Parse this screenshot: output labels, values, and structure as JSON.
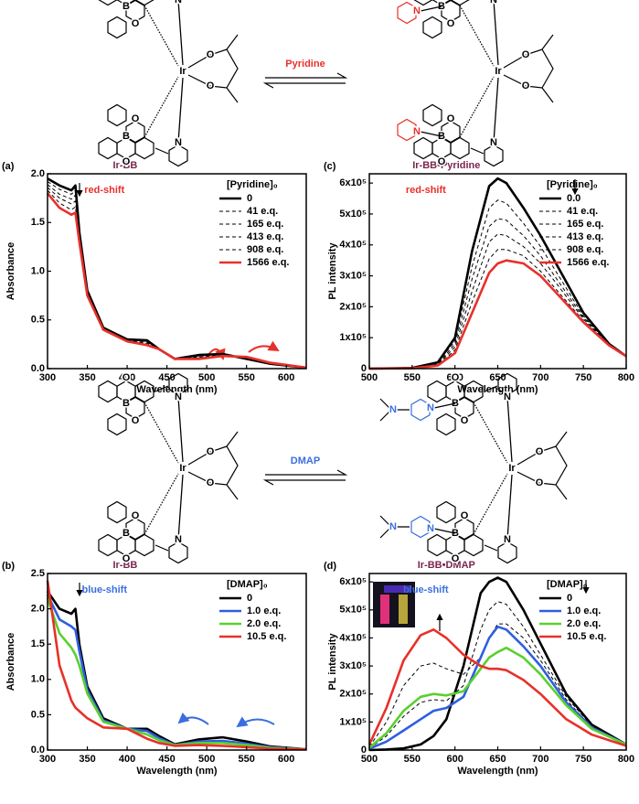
{
  "chart_data": [
    {
      "type": "line",
      "panel": "(a)",
      "title": "Ir-BB",
      "title_color": "#7a2652",
      "annotation": "red-shift",
      "annotation_color": "#e8302a",
      "legend_title": "[Pyridine]₀",
      "legend": "upper right",
      "xlabel": "Wavelength (nm)",
      "ylabel": "Absorbance",
      "x": [
        300,
        315,
        330,
        335,
        340,
        350,
        370,
        400,
        425,
        440,
        460,
        490,
        520,
        550,
        580,
        625
      ],
      "xlim": [
        300,
        625
      ],
      "xticks": [
        300,
        350,
        400,
        450,
        500,
        550,
        600
      ],
      "ylim": [
        0,
        2.0
      ],
      "yticks": [
        {
          "value": 0,
          "label": "0.0"
        },
        {
          "value": 0.5,
          "label": "0.5"
        },
        {
          "value": 1.0,
          "label": "1.0"
        },
        {
          "value": 1.5,
          "label": "1.5"
        },
        {
          "value": 2.0,
          "label": "2.0"
        }
      ],
      "series": [
        {
          "name": "0",
          "color": "#000000",
          "dash": false,
          "values": [
            1.95,
            1.88,
            1.83,
            1.88,
            1.4,
            0.8,
            0.42,
            0.3,
            0.29,
            0.2,
            0.1,
            0.14,
            0.15,
            0.1,
            0.05,
            0.01
          ]
        },
        {
          "name": "41 e.q.",
          "color": "#000000",
          "dash": true,
          "values": [
            1.92,
            1.84,
            1.79,
            1.83,
            1.38,
            0.79,
            0.42,
            0.3,
            0.28,
            0.2,
            0.1,
            0.13,
            0.15,
            0.11,
            0.05,
            0.01
          ]
        },
        {
          "name": "165 e.q.",
          "color": "#000000",
          "dash": true,
          "values": [
            1.89,
            1.79,
            1.74,
            1.78,
            1.36,
            0.78,
            0.41,
            0.29,
            0.27,
            0.2,
            0.1,
            0.12,
            0.14,
            0.11,
            0.05,
            0.01
          ]
        },
        {
          "name": "413 e.q.",
          "color": "#000000",
          "dash": true,
          "values": [
            1.86,
            1.75,
            1.69,
            1.72,
            1.34,
            0.77,
            0.41,
            0.29,
            0.26,
            0.2,
            0.1,
            0.11,
            0.14,
            0.11,
            0.06,
            0.01
          ]
        },
        {
          "name": "908 e.q.",
          "color": "#000000",
          "dash": true,
          "values": [
            1.83,
            1.7,
            1.63,
            1.66,
            1.32,
            0.76,
            0.4,
            0.28,
            0.25,
            0.2,
            0.1,
            0.11,
            0.13,
            0.12,
            0.06,
            0.01
          ]
        },
        {
          "name": "1566 e.q.",
          "color": "#e8302a",
          "dash": false,
          "values": [
            1.8,
            1.65,
            1.58,
            1.6,
            1.3,
            0.75,
            0.4,
            0.28,
            0.24,
            0.2,
            0.1,
            0.1,
            0.13,
            0.12,
            0.06,
            0.01
          ]
        }
      ]
    },
    {
      "type": "line",
      "panel": "(c)",
      "title": "Ir-BB•Pyridine",
      "title_color": "#7a2652",
      "annotation": "red-shift",
      "annotation_color": "#e8302a",
      "legend_title": "[Pyridine]₀",
      "legend": "upper right",
      "xlabel": "Wavelength (nm)",
      "ylabel": "PL intensity",
      "x": [
        500,
        550,
        580,
        600,
        620,
        640,
        650,
        660,
        680,
        700,
        720,
        750,
        780,
        800
      ],
      "xlim": [
        500,
        800
      ],
      "xticks": [
        500,
        550,
        600,
        650,
        700,
        750,
        800
      ],
      "ylim": [
        0,
        630000
      ],
      "yticks": [
        0,
        {
          "value": 100000,
          "label": "1x10⁵"
        },
        {
          "value": 200000,
          "label": "2x10⁵"
        },
        {
          "value": 300000,
          "label": "3x10⁵"
        },
        {
          "value": 400000,
          "label": "4x10⁵"
        },
        {
          "value": 500000,
          "label": "5x10⁵"
        },
        {
          "value": 600000,
          "label": "6x10⁵"
        }
      ],
      "series": [
        {
          "name": "0.0",
          "color": "#000000",
          "dash": false,
          "values": [
            0,
            2000,
            20000,
            100000,
            380000,
            590000,
            615000,
            600000,
            520000,
            430000,
            330000,
            180000,
            80000,
            40000
          ]
        },
        {
          "name": "41 e.q.",
          "color": "#000000",
          "dash": true,
          "values": [
            0,
            1800,
            18000,
            90000,
            330000,
            520000,
            545000,
            535000,
            470000,
            395000,
            305000,
            170000,
            78000,
            40000
          ]
        },
        {
          "name": "165 e.q.",
          "color": "#000000",
          "dash": true,
          "values": [
            0,
            1600,
            15000,
            80000,
            290000,
            460000,
            485000,
            480000,
            430000,
            365000,
            285000,
            165000,
            78000,
            40000
          ]
        },
        {
          "name": "413 e.q.",
          "color": "#000000",
          "dash": true,
          "values": [
            0,
            1400,
            13000,
            70000,
            250000,
            410000,
            435000,
            430000,
            395000,
            340000,
            270000,
            160000,
            77000,
            40000
          ]
        },
        {
          "name": "908 e.q.",
          "color": "#000000",
          "dash": true,
          "values": [
            0,
            1200,
            11000,
            60000,
            215000,
            355000,
            385000,
            385000,
            365000,
            315000,
            250000,
            155000,
            76000,
            40000
          ]
        },
        {
          "name": "1566 e.q.",
          "color": "#e8302a",
          "dash": false,
          "values": [
            0,
            1000,
            10000,
            50000,
            180000,
            310000,
            340000,
            350000,
            340000,
            300000,
            240000,
            150000,
            75000,
            40000
          ]
        }
      ]
    },
    {
      "type": "line",
      "panel": "(b)",
      "title": "Ir-BB",
      "title_color": "#7a2652",
      "annotation": "blue-shift",
      "annotation_color": "#3a6ee0",
      "legend_title": "[DMAP]₀",
      "legend": "upper right",
      "xlabel": "Wavelength (nm)",
      "ylabel": "Absorbance",
      "x": [
        300,
        315,
        330,
        335,
        340,
        350,
        370,
        400,
        425,
        440,
        460,
        490,
        520,
        550,
        580,
        625
      ],
      "xlim": [
        300,
        625
      ],
      "xticks": [
        300,
        350,
        400,
        450,
        500,
        550,
        600
      ],
      "ylim": [
        0,
        2.5
      ],
      "yticks": [
        {
          "value": 0,
          "label": "0.0"
        },
        {
          "value": 0.5,
          "label": "0.5"
        },
        {
          "value": 1.0,
          "label": "1.0"
        },
        {
          "value": 1.5,
          "label": "1.5"
        },
        {
          "value": 2.0,
          "label": "2.0"
        },
        {
          "value": 2.5,
          "label": "2.5"
        }
      ],
      "series": [
        {
          "name": "0",
          "color": "#000000",
          "dash": false,
          "values": [
            2.25,
            2.0,
            1.93,
            2.0,
            1.5,
            0.9,
            0.45,
            0.3,
            0.3,
            0.2,
            0.08,
            0.15,
            0.18,
            0.12,
            0.05,
            0.01
          ]
        },
        {
          "name": "1.0 e.q.",
          "color": "#2f5fe0",
          "dash": false,
          "values": [
            2.2,
            1.85,
            1.75,
            1.7,
            1.4,
            0.85,
            0.42,
            0.3,
            0.27,
            0.17,
            0.07,
            0.12,
            0.13,
            0.09,
            0.04,
            0.01
          ]
        },
        {
          "name": "2.0 e.q.",
          "color": "#5ad02e",
          "dash": false,
          "values": [
            2.15,
            1.65,
            1.45,
            1.35,
            1.2,
            0.8,
            0.4,
            0.3,
            0.22,
            0.14,
            0.07,
            0.1,
            0.1,
            0.07,
            0.03,
            0.01
          ]
        },
        {
          "name": "10.5 e.q.",
          "color": "#e8302a",
          "dash": false,
          "values": [
            2.4,
            1.2,
            0.7,
            0.6,
            0.55,
            0.45,
            0.32,
            0.3,
            0.16,
            0.1,
            0.06,
            0.07,
            0.06,
            0.04,
            0.02,
            0.01
          ]
        }
      ]
    },
    {
      "type": "line",
      "panel": "(d)",
      "title": "Ir-BB•DMAP",
      "title_color": "#7a2652",
      "annotation": "blue-shift",
      "annotation_color": "#3a6ee0",
      "legend_title": "[DMAP]₀",
      "legend": "upper right",
      "xlabel": "Wavelength (nm)",
      "ylabel": "PL intensity",
      "x": [
        500,
        520,
        540,
        560,
        575,
        590,
        610,
        630,
        640,
        650,
        660,
        680,
        700,
        730,
        760,
        800
      ],
      "xlim": [
        500,
        800
      ],
      "xticks": [
        500,
        550,
        600,
        650,
        700,
        750,
        800
      ],
      "ylim": [
        0,
        630000
      ],
      "yticks": [
        0,
        {
          "value": 100000,
          "label": "1x10⁵"
        },
        {
          "value": 200000,
          "label": "2x10⁵"
        },
        {
          "value": 300000,
          "label": "3x10⁵"
        },
        {
          "value": 400000,
          "label": "4x10⁵"
        },
        {
          "value": 500000,
          "label": "5x10⁵"
        },
        {
          "value": 600000,
          "label": "6x10⁵"
        }
      ],
      "series": [
        {
          "color": "#000000",
          "dash": true,
          "values": [
            6000,
            50000,
            120000,
            170000,
            180000,
            175000,
            230000,
            430000,
            500000,
            530000,
            520000,
            440000,
            340000,
            190000,
            85000,
            20000
          ]
        },
        {
          "color": "#000000",
          "dash": true,
          "values": [
            12000,
            100000,
            230000,
            300000,
            310000,
            290000,
            270000,
            330000,
            400000,
            450000,
            450000,
            400000,
            320000,
            180000,
            80000,
            20000
          ]
        },
        {
          "name": "0",
          "color": "#000000",
          "dash": false,
          "values": [
            0,
            2000,
            6000,
            20000,
            50000,
            110000,
            300000,
            560000,
            600000,
            615000,
            600000,
            500000,
            380000,
            200000,
            90000,
            20000
          ]
        },
        {
          "name": "1.0 e.q.",
          "color": "#2f5fe0",
          "dash": false,
          "values": [
            5000,
            30000,
            70000,
            110000,
            140000,
            150000,
            190000,
            330000,
            400000,
            440000,
            430000,
            370000,
            300000,
            170000,
            80000,
            20000
          ]
        },
        {
          "name": "2.0 e.q.",
          "color": "#5ad02e",
          "dash": false,
          "values": [
            8000,
            60000,
            140000,
            190000,
            200000,
            195000,
            210000,
            290000,
            330000,
            350000,
            365000,
            330000,
            270000,
            160000,
            75000,
            20000
          ]
        },
        {
          "name": "10.5 e.q.",
          "color": "#e8302a",
          "dash": false,
          "values": [
            20000,
            150000,
            320000,
            410000,
            430000,
            400000,
            340000,
            300000,
            290000,
            290000,
            285000,
            250000,
            200000,
            110000,
            55000,
            15000
          ]
        }
      ]
    }
  ],
  "schemes": [
    {
      "reagent": "Pyridine",
      "color": "#e8302a",
      "reactant_atoms": [
        "O",
        "B",
        "O",
        "N",
        "Ir",
        "O",
        "O",
        "O",
        "B",
        "O",
        "N"
      ],
      "product_atoms": [
        "O",
        "B",
        "O",
        "N",
        "Ir",
        "O",
        "O",
        "O",
        "B",
        "O",
        "N"
      ],
      "added_atoms": [
        "N",
        "N"
      ]
    },
    {
      "reagent": "DMAP",
      "color": "#3a6ee0",
      "reactant_atoms": [
        "O",
        "B",
        "O",
        "N",
        "Ir",
        "O",
        "O",
        "O",
        "B",
        "O",
        "N"
      ],
      "product_atoms": [
        "O",
        "B",
        "O",
        "N",
        "Ir",
        "O",
        "O",
        "O",
        "B",
        "O",
        "N"
      ],
      "added_atoms": [
        "N",
        "N",
        "N",
        "N"
      ]
    }
  ]
}
